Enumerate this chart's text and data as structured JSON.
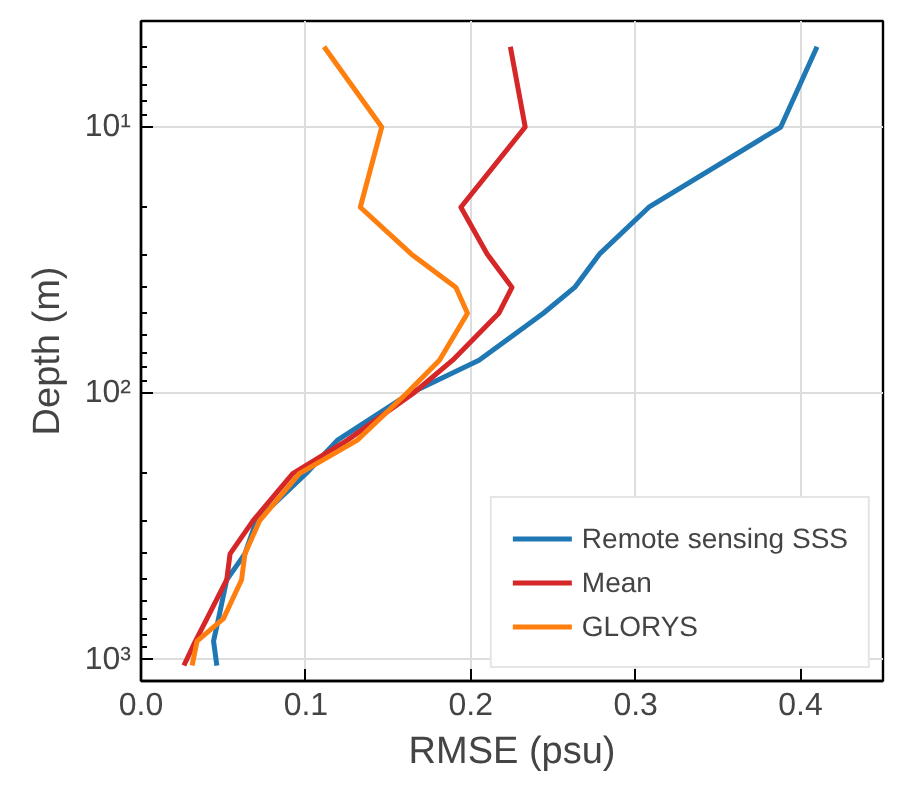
{
  "chart_data": {
    "type": "line",
    "xlabel": "RMSE (psu)",
    "ylabel": "Depth (m)",
    "log": "y",
    "grid": true,
    "legend": "bottom right",
    "line_style": "solid",
    "xlim": [
      0,
      0.45
    ],
    "ylim": [
      1200,
      4
    ],
    "xticks": [
      {
        "value": 0,
        "label": "0.0"
      },
      {
        "value": 0.1,
        "label": "0.1"
      },
      {
        "value": 0.2,
        "label": "0.2"
      },
      {
        "value": 0.3,
        "label": "0.3"
      },
      {
        "value": 0.4,
        "label": "0.4"
      }
    ],
    "yticks": [
      {
        "value": 10,
        "label": "10¹"
      },
      {
        "value": 100,
        "label": "10²"
      },
      {
        "value": 1000,
        "label": "10³"
      }
    ],
    "series": [
      {
        "name": "Remote sensing SSS",
        "color": "#1f77b4",
        "x": [
          0.41,
          0.388,
          0.308,
          0.278,
          0.263,
          0.244,
          0.205,
          0.163,
          0.119,
          0.1,
          0.07,
          0.063,
          0.052,
          0.047,
          0.044,
          0.046
        ],
        "values": [
          5,
          10,
          20,
          30,
          40,
          50,
          75,
          100,
          150,
          200,
          300,
          400,
          500,
          700,
          850,
          1050
        ]
      },
      {
        "name": "Mean",
        "color": "#d62728",
        "x": [
          0.224,
          0.233,
          0.194,
          0.21,
          0.225,
          0.217,
          0.189,
          0.165,
          0.125,
          0.092,
          0.068,
          0.054,
          0.052,
          0.04,
          0.033,
          0.026
        ],
        "values": [
          5,
          10,
          20,
          30,
          40,
          50,
          75,
          100,
          150,
          200,
          300,
          400,
          500,
          700,
          850,
          1050
        ]
      },
      {
        "name": "GLORYS",
        "color": "#ff7f0e",
        "x": [
          0.111,
          0.146,
          0.133,
          0.164,
          0.191,
          0.198,
          0.181,
          0.161,
          0.131,
          0.096,
          0.072,
          0.063,
          0.061,
          0.05,
          0.034,
          0.031
        ],
        "values": [
          5,
          10,
          20,
          30,
          40,
          50,
          75,
          100,
          150,
          200,
          300,
          400,
          500,
          700,
          850,
          1050
        ]
      }
    ]
  }
}
